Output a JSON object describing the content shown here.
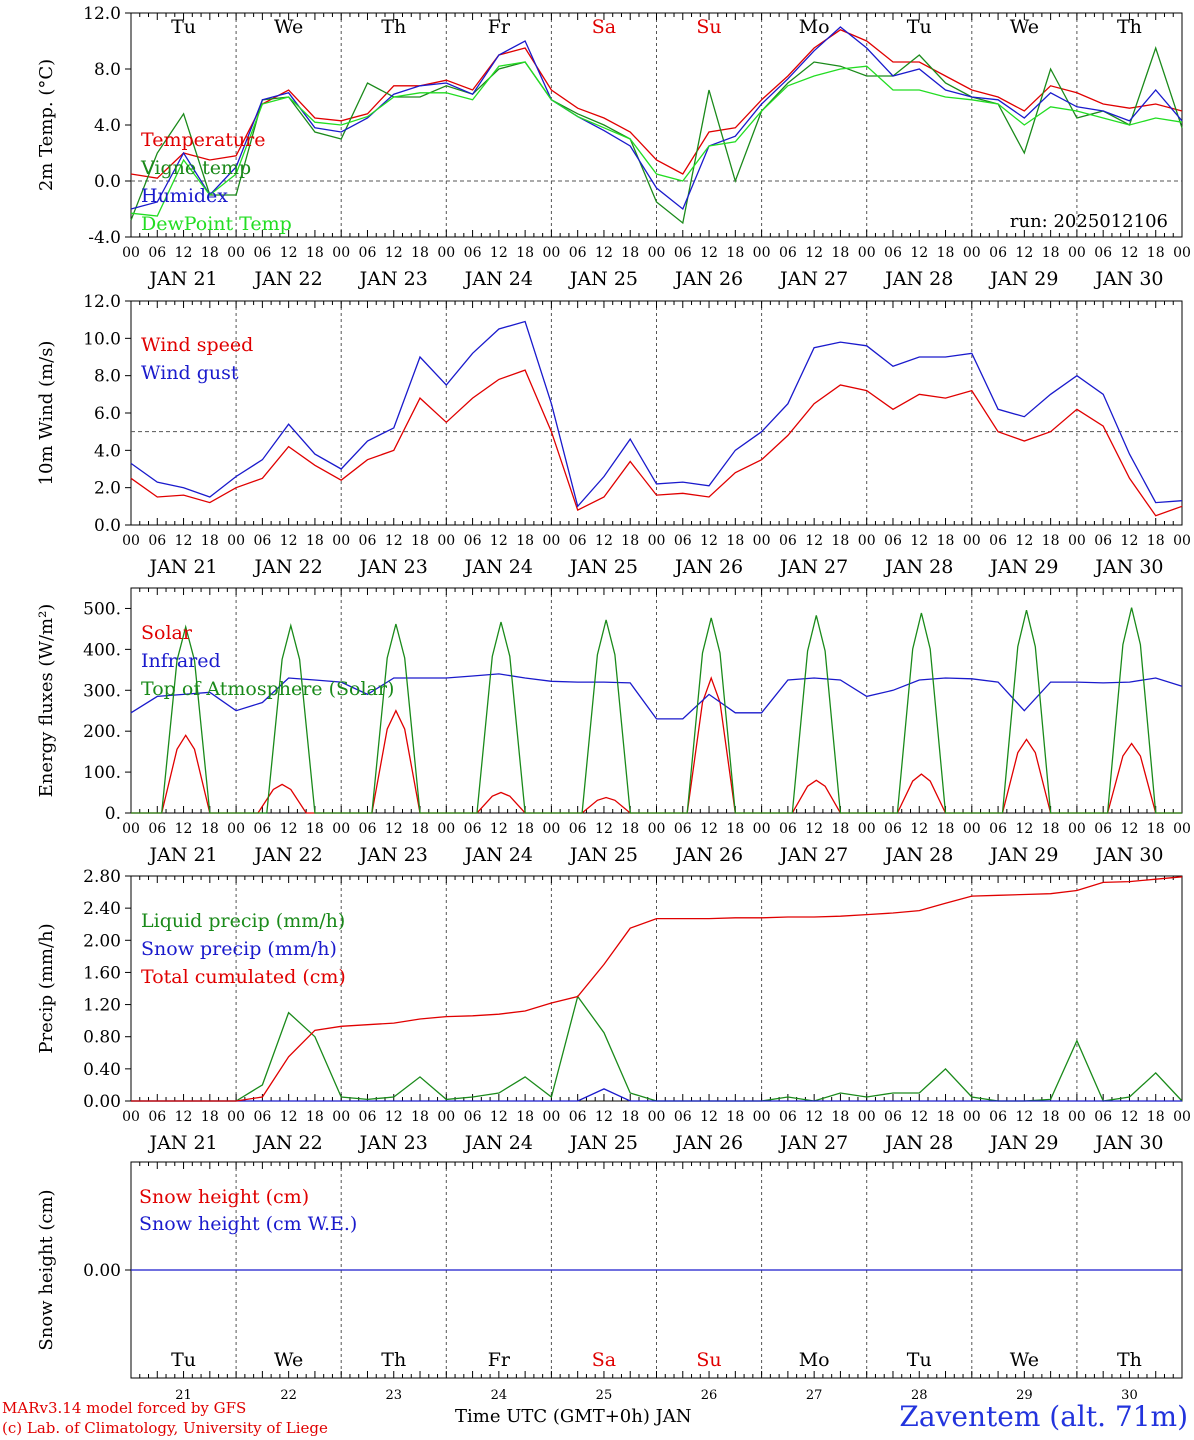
{
  "footer": {
    "credit_line1": "MARv3.14 model forced by GFS",
    "credit_line2": "(c) Lab. of Climatology, University of Liege",
    "xaxis_caption": "Time UTC (GMT+0h) JAN",
    "station": "Zaventem (alt. 71m)"
  },
  "colors": {
    "red": "#e00000",
    "green": "#1a8a1a",
    "blue": "#1a1acc",
    "lightgreen": "#22dd22",
    "weekend": "#ff0000"
  },
  "days": {
    "weekdays": [
      "Tu",
      "We",
      "Th",
      "Fr",
      "Sa",
      "Su",
      "Mo",
      "Tu",
      "We",
      "Th"
    ],
    "weekend_flags": [
      false,
      false,
      false,
      false,
      true,
      true,
      false,
      false,
      false,
      false
    ],
    "date_labels": [
      "JAN 21",
      "JAN 22",
      "JAN 23",
      "JAN 24",
      "JAN 25",
      "JAN 26",
      "JAN 27",
      "JAN 28",
      "JAN 29",
      "JAN 30"
    ],
    "day_numbers": [
      "21",
      "22",
      "23",
      "24",
      "25",
      "26",
      "27",
      "28",
      "29",
      "30"
    ],
    "hour_ticks": [
      "00",
      "06",
      "12",
      "18"
    ],
    "end_tick": "00"
  },
  "chart_data": [
    {
      "id": "temp",
      "type": "line",
      "ylabel": "2m Temp. (°C)",
      "ylim": [
        -4,
        12
      ],
      "yticks": [
        "-4.0",
        "0.0",
        "4.0",
        "8.0",
        "12.0"
      ],
      "ytick_values": [
        -4,
        0,
        4,
        8,
        12
      ],
      "reference_line": 0,
      "annotation": "run: 2025012106",
      "x_hours": [
        0,
        6,
        12,
        18,
        24,
        30,
        36,
        42,
        48,
        54,
        60,
        66,
        72,
        78,
        84,
        90,
        96,
        102,
        108,
        114,
        120,
        126,
        132,
        138,
        144,
        150,
        156,
        162,
        168,
        174,
        180,
        186,
        192,
        198,
        204,
        210,
        216,
        222,
        228,
        234,
        240
      ],
      "series": [
        {
          "name": "Temperature",
          "color": "red",
          "values": [
            0.5,
            0.2,
            2.0,
            1.5,
            1.8,
            5.5,
            6.5,
            4.5,
            4.3,
            4.8,
            6.8,
            6.8,
            7.2,
            6.5,
            9.0,
            9.5,
            6.5,
            5.2,
            4.5,
            3.5,
            1.5,
            0.5,
            3.5,
            3.8,
            5.8,
            7.5,
            9.5,
            10.8,
            10.0,
            8.5,
            8.5,
            7.5,
            6.5,
            6.0,
            5.0,
            6.8,
            6.3,
            5.5,
            5.2,
            5.5,
            5.0
          ]
        },
        {
          "name": "Vigne temp",
          "color": "green",
          "values": [
            -2.8,
            2.0,
            4.8,
            -1.0,
            -1.0,
            5.8,
            6.0,
            3.5,
            3.0,
            7.0,
            6.0,
            6.0,
            6.8,
            6.2,
            8.0,
            8.5,
            5.8,
            4.8,
            4.0,
            3.0,
            -1.5,
            -3.0,
            6.5,
            0.0,
            5.0,
            7.0,
            8.5,
            8.2,
            7.5,
            7.5,
            9.0,
            7.0,
            6.0,
            5.5,
            2.0,
            8.0,
            4.5,
            5.0,
            4.0,
            9.5,
            3.8
          ]
        },
        {
          "name": "Humidex",
          "color": "blue",
          "values": [
            -2.0,
            -1.5,
            2.0,
            -1.0,
            1.0,
            5.8,
            6.3,
            3.8,
            3.5,
            4.5,
            6.2,
            6.8,
            7.0,
            6.2,
            9.0,
            10.0,
            5.8,
            4.6,
            3.6,
            2.5,
            -0.5,
            -2.0,
            2.5,
            3.2,
            5.5,
            7.3,
            9.3,
            11.0,
            9.5,
            7.5,
            8.0,
            6.5,
            6.0,
            5.8,
            4.5,
            6.3,
            5.3,
            5.0,
            4.3,
            6.5,
            4.3
          ]
        },
        {
          "name": "DewPoint Temp",
          "color": "lightgreen",
          "values": [
            -2.3,
            -2.5,
            1.5,
            -1.0,
            0.5,
            5.5,
            6.0,
            4.2,
            4.0,
            4.6,
            6.0,
            6.3,
            6.3,
            5.8,
            8.2,
            8.5,
            5.8,
            4.6,
            3.8,
            3.0,
            0.5,
            0.0,
            2.5,
            2.8,
            5.0,
            6.8,
            7.5,
            8.0,
            8.2,
            6.5,
            6.5,
            6.0,
            5.8,
            5.5,
            4.0,
            5.3,
            5.0,
            4.5,
            4.0,
            4.5,
            4.2
          ]
        }
      ]
    },
    {
      "id": "wind",
      "type": "line",
      "ylabel": "10m Wind (m/s)",
      "ylim": [
        0,
        12
      ],
      "yticks": [
        "0.0",
        "2.0",
        "4.0",
        "6.0",
        "8.0",
        "10.0",
        "12.0"
      ],
      "ytick_values": [
        0,
        2,
        4,
        6,
        8,
        10,
        12
      ],
      "reference_line": 5,
      "x_hours": [
        0,
        6,
        12,
        18,
        24,
        30,
        36,
        42,
        48,
        54,
        60,
        66,
        72,
        78,
        84,
        90,
        96,
        102,
        108,
        114,
        120,
        126,
        132,
        138,
        144,
        150,
        156,
        162,
        168,
        174,
        180,
        186,
        192,
        198,
        204,
        210,
        216,
        222,
        228,
        234,
        240
      ],
      "series": [
        {
          "name": "Wind speed",
          "color": "red",
          "values": [
            2.5,
            1.5,
            1.6,
            1.2,
            2.0,
            2.5,
            4.2,
            3.2,
            2.4,
            3.5,
            4.0,
            6.8,
            5.5,
            6.8,
            7.8,
            8.3,
            5.0,
            0.8,
            1.5,
            3.4,
            1.6,
            1.7,
            1.5,
            2.8,
            3.5,
            4.8,
            6.5,
            7.5,
            7.2,
            6.2,
            7.0,
            6.8,
            7.2,
            5.0,
            4.5,
            5.0,
            6.2,
            5.3,
            2.5,
            0.5,
            1.0
          ]
        },
        {
          "name": "Wind gust",
          "color": "blue",
          "values": [
            3.3,
            2.3,
            2.0,
            1.5,
            2.6,
            3.5,
            5.4,
            3.8,
            3.0,
            4.5,
            5.2,
            9.0,
            7.5,
            9.2,
            10.5,
            10.9,
            6.5,
            1.0,
            2.6,
            4.6,
            2.2,
            2.3,
            2.1,
            4.0,
            5.0,
            6.5,
            9.5,
            9.8,
            9.6,
            8.5,
            9.0,
            9.0,
            9.2,
            6.2,
            5.8,
            7.0,
            8.0,
            7.0,
            3.8,
            1.2,
            1.3
          ]
        }
      ]
    },
    {
      "id": "energy",
      "type": "line",
      "ylabel": "Energy fluxes (W/m²)",
      "ylim": [
        0,
        550
      ],
      "yticks": [
        "0.",
        "100.",
        "200.",
        "300.",
        "400.",
        "500."
      ],
      "ytick_values": [
        0,
        100,
        200,
        300,
        400,
        500
      ],
      "x_hours": [
        0,
        6,
        12,
        18,
        24,
        30,
        36,
        42,
        48,
        54,
        60,
        66,
        72,
        78,
        84,
        90,
        96,
        102,
        108,
        114,
        120,
        126,
        132,
        138,
        144,
        150,
        156,
        162,
        168,
        174,
        180,
        186,
        192,
        198,
        204,
        210,
        216,
        222,
        228,
        234,
        240
      ],
      "series": [
        {
          "name": "Solar",
          "color": "red",
          "peaks": [
            {
              "hour": 12.5,
              "value": 190
            },
            {
              "hour": 34.5,
              "value": 70
            },
            {
              "hour": 60.5,
              "value": 250
            },
            {
              "hour": 84.5,
              "value": 50
            },
            {
              "hour": 108.5,
              "value": 38
            },
            {
              "hour": 132.5,
              "value": 330
            },
            {
              "hour": 156.5,
              "value": 80
            },
            {
              "hour": 180.5,
              "value": 95
            },
            {
              "hour": 204.5,
              "value": 180
            },
            {
              "hour": 228.5,
              "value": 170
            }
          ]
        },
        {
          "name": "Infrared",
          "color": "blue",
          "values": [
            245,
            285,
            290,
            295,
            250,
            270,
            330,
            325,
            320,
            290,
            330,
            330,
            330,
            335,
            340,
            330,
            322,
            320,
            320,
            318,
            230,
            230,
            290,
            245,
            245,
            325,
            330,
            325,
            285,
            300,
            325,
            330,
            328,
            320,
            250,
            320,
            320,
            318,
            320,
            330,
            310
          ]
        },
        {
          "name": "Top of Atmosphere (Solar)",
          "color": "green",
          "peaks": [
            {
              "hour": 12.5,
              "value": 455
            },
            {
              "hour": 36.5,
              "value": 458
            },
            {
              "hour": 60.5,
              "value": 462
            },
            {
              "hour": 84.5,
              "value": 467
            },
            {
              "hour": 108.5,
              "value": 472
            },
            {
              "hour": 132.5,
              "value": 477
            },
            {
              "hour": 156.5,
              "value": 483
            },
            {
              "hour": 180.5,
              "value": 489
            },
            {
              "hour": 204.5,
              "value": 496
            },
            {
              "hour": 228.5,
              "value": 502
            }
          ]
        }
      ]
    },
    {
      "id": "precip",
      "type": "line",
      "ylabel": "Precip (mm/h)",
      "ylim": [
        0,
        2.8
      ],
      "yticks": [
        "0.00",
        "0.40",
        "0.80",
        "1.20",
        "1.60",
        "2.00",
        "2.40",
        "2.80"
      ],
      "ytick_values": [
        0,
        0.4,
        0.8,
        1.2,
        1.6,
        2.0,
        2.4,
        2.8
      ],
      "x_hours": [
        0,
        6,
        12,
        18,
        24,
        30,
        36,
        42,
        48,
        54,
        60,
        66,
        72,
        78,
        84,
        90,
        96,
        102,
        108,
        114,
        120,
        126,
        132,
        138,
        144,
        150,
        156,
        162,
        168,
        174,
        180,
        186,
        192,
        198,
        204,
        210,
        216,
        222,
        228,
        234,
        240
      ],
      "series": [
        {
          "name": "Liquid precip (mm/h)",
          "color": "green",
          "values": [
            0,
            0,
            0,
            0,
            0,
            0.2,
            1.1,
            0.8,
            0.05,
            0.02,
            0.05,
            0.3,
            0.02,
            0.05,
            0.1,
            0.3,
            0.05,
            1.3,
            0.85,
            0.1,
            0,
            0,
            0,
            0,
            0,
            0.05,
            0,
            0.1,
            0.05,
            0.1,
            0.1,
            0.4,
            0.05,
            0,
            0,
            0.02,
            0.75,
            0,
            0.05,
            0.35,
            0
          ]
        },
        {
          "name": "Snow precip (mm/h)",
          "color": "blue",
          "values": [
            0,
            0,
            0,
            0,
            0,
            0,
            0,
            0,
            0,
            0,
            0,
            0,
            0,
            0,
            0,
            0,
            0,
            0,
            0.15,
            0,
            0,
            0,
            0,
            0,
            0,
            0,
            0,
            0,
            0,
            0,
            0,
            0,
            0,
            0,
            0,
            0,
            0,
            0,
            0,
            0,
            0
          ]
        },
        {
          "name": "Total cumulated (cm)",
          "color": "red",
          "values": [
            0,
            0,
            0,
            0,
            0,
            0.05,
            0.55,
            0.88,
            0.93,
            0.95,
            0.97,
            1.02,
            1.05,
            1.06,
            1.08,
            1.12,
            1.22,
            1.3,
            1.7,
            2.15,
            2.27,
            2.27,
            2.27,
            2.28,
            2.28,
            2.29,
            2.29,
            2.3,
            2.32,
            2.34,
            2.37,
            2.46,
            2.55,
            2.56,
            2.57,
            2.58,
            2.62,
            2.72,
            2.73,
            2.76,
            2.79
          ]
        }
      ]
    },
    {
      "id": "snow",
      "type": "line",
      "ylabel": "Snow height (cm)",
      "ylim": [
        -1,
        1
      ],
      "yticks": [
        "0.00"
      ],
      "ytick_values": [
        0
      ],
      "x_hours": [
        0,
        240
      ],
      "series": [
        {
          "name": "Snow height (cm)",
          "color": "red",
          "values": [
            0,
            0
          ]
        },
        {
          "name": "Snow height (cm W.E.)",
          "color": "blue",
          "values": [
            0,
            0
          ]
        }
      ]
    }
  ]
}
